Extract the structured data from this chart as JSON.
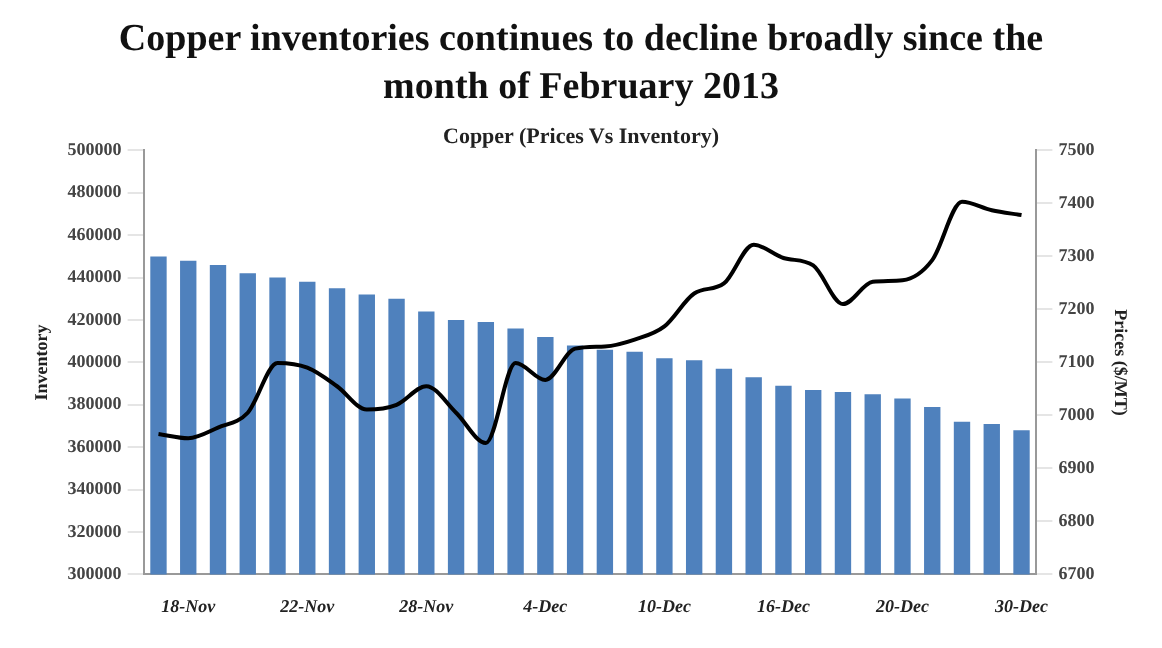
{
  "chart_data": {
    "type": "bar",
    "title": "Copper inventories continues to decline broadly since the month of February 2013",
    "subtitle": "Copper (Prices Vs Inventory)",
    "ylabel": "Inventory",
    "y2label": "Prices ($/MT)",
    "categories": [
      null,
      "18-Nov",
      null,
      null,
      null,
      "22-Nov",
      null,
      null,
      null,
      "28-Nov",
      null,
      null,
      null,
      "4-Dec",
      null,
      null,
      null,
      "10-Dec",
      null,
      null,
      null,
      "16-Dec",
      null,
      null,
      null,
      "20-Dec",
      null,
      null,
      null,
      "30-Dec"
    ],
    "series": [
      {
        "color": "#4f81bd",
        "values": [
          450000,
          448000,
          446000,
          442000,
          440000,
          438000,
          435000,
          432000,
          430000,
          424000,
          420000,
          419000,
          416000,
          412000,
          408000,
          406000,
          405000,
          402000,
          401000,
          397000,
          393000,
          389000,
          387000,
          386000,
          385000,
          383000,
          379000,
          372000,
          371000,
          368000
        ]
      },
      {
        "type": "line",
        "axis": "y2",
        "color": "#000000",
        "values": [
          6965,
          6957,
          6977,
          7005,
          7099,
          7090,
          7055,
          7011,
          7020,
          7055,
          7005,
          6948,
          7099,
          7067,
          7126,
          7130,
          7143,
          7168,
          7230,
          7249,
          7322,
          7297,
          7283,
          7210,
          7252,
          7255,
          7293,
          7403,
          7387,
          7378
        ]
      }
    ],
    "ylim": [
      300000,
      500000
    ],
    "yticks": [
      300000,
      320000,
      340000,
      360000,
      380000,
      400000,
      420000,
      440000,
      460000,
      480000,
      500000
    ],
    "y2lim": [
      6700,
      7500
    ],
    "y2ticks": [
      6700,
      6800,
      6900,
      7000,
      7100,
      7200,
      7300,
      7400,
      7500
    ],
    "grid": false,
    "legend": false,
    "marker": "none"
  }
}
